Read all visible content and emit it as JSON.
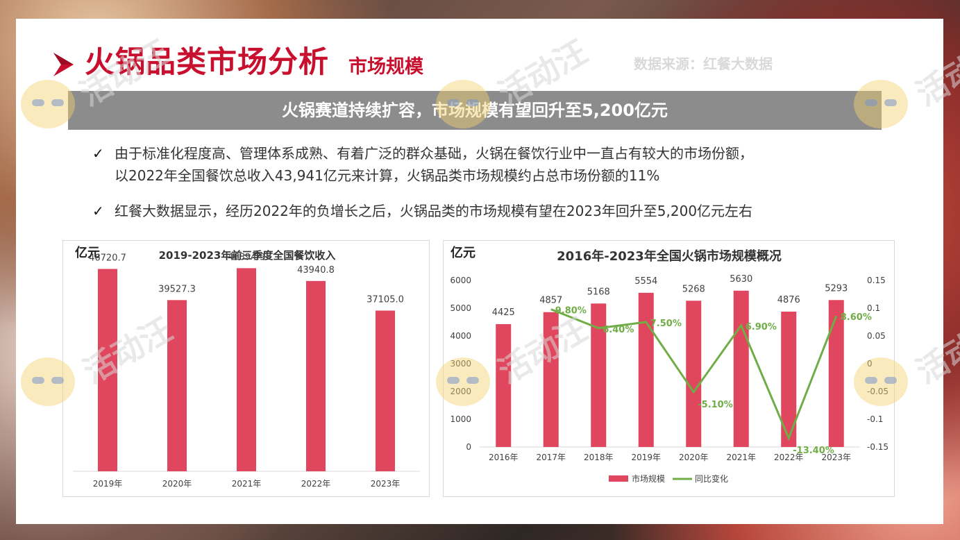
{
  "header": {
    "title": "火锅品类市场分析",
    "subtitle": "市场规模",
    "source": "数据来源：红餐大数据"
  },
  "banner": "火锅赛道持续扩容，市场规模有望回升至5,200亿元",
  "bullets": [
    {
      "check": "✓",
      "line1": "由于标准化程度高、管理体系成熟、有着广泛的群众基础，火锅在餐饮行业中一直占有较大的市场份额，",
      "line2": "以2022年全国餐饮总收入43,941亿元来计算，火锅品类市场规模约占总市场份额的11%"
    },
    {
      "check": "✓",
      "line1": "红餐大数据显示，经历2022年的负增长之后，火锅品类的市场规模有望在2023年回升至5,200亿元左右"
    }
  ],
  "watermark": {
    "text": "活动汪"
  },
  "colors": {
    "accent": "#c8102e",
    "bar": "#e0475e",
    "line": "#70ad47",
    "banner": "#8c8c8c"
  },
  "chart_data": [
    {
      "type": "bar",
      "title": "2019-2023年前三季度全国餐饮收入",
      "unit": "亿元",
      "categories": [
        "2019年",
        "2020年",
        "2021年",
        "2022年",
        "2023年"
      ],
      "values": [
        46720.7,
        39527.3,
        46894.9,
        43940.8,
        37105.0
      ],
      "value_labels": [
        "46720.7",
        "39527.3",
        "46894.9",
        "43940.8",
        "37105.0"
      ],
      "ylim": [
        0,
        50000
      ],
      "grid": false
    },
    {
      "type": "bar",
      "title": "2016年-2023年全国火锅市场规模概况",
      "unit": "亿元",
      "categories": [
        "2016年",
        "2017年",
        "2018年",
        "2019年",
        "2020年",
        "2021年",
        "2022年",
        "2023年"
      ],
      "series": [
        {
          "name": "市场规模",
          "type": "bar",
          "axis": "left",
          "values": [
            4425,
            4857,
            5168,
            5554,
            5268,
            5630,
            4876,
            5293
          ]
        },
        {
          "name": "同比变化",
          "type": "line",
          "axis": "right",
          "values": [
            null,
            0.098,
            0.064,
            0.075,
            -0.051,
            0.069,
            -0.134,
            0.086
          ],
          "labels": [
            "",
            "9.80%",
            "6.40%",
            "7.50%",
            "-5.10%",
            "6.90%",
            "-13.40%",
            "8.60%"
          ]
        }
      ],
      "ylim_left": [
        0,
        6000
      ],
      "yticks_left": [
        "0",
        "1000",
        "2000",
        "3000",
        "4000",
        "5000",
        "6000"
      ],
      "ylim_right": [
        -0.15,
        0.15
      ],
      "yticks_right": [
        "-0.15",
        "-0.1",
        "-0.05",
        "0",
        "0.05",
        "0.1",
        "0.15"
      ],
      "legend_position": "bottom",
      "grid": false
    }
  ]
}
